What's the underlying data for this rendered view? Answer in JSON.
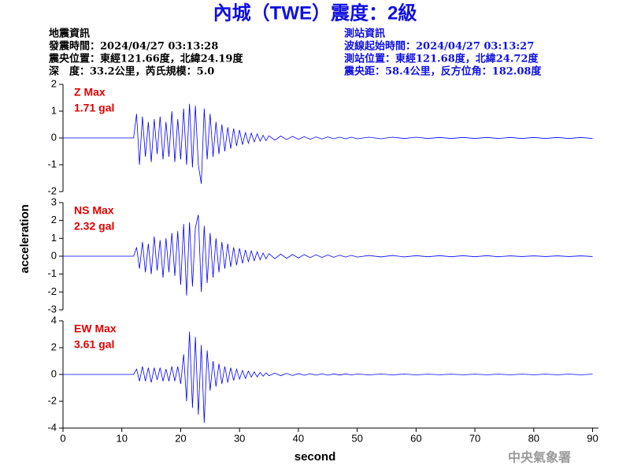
{
  "header": {
    "title": "內城（TWE）震度：2級",
    "left": [
      "地震資訊",
      "發震時間：2024/04/27 03:13:28",
      "震央位置：東經121.66度，北緯24.19度",
      "深　度：33.2公里，芮氏規模：5.0"
    ],
    "right": [
      "測站資訊",
      "波線起始時間：2024/04/27 03:13:27",
      "測站位置：東經121.68度，北緯24.72度",
      "震央距：58.4公里，反方位角：182.08度"
    ]
  },
  "chart_data": [
    {
      "type": "line",
      "annotations": [
        "Z Max",
        "1.71 gal"
      ],
      "color": "#0000ff",
      "xlim": [
        0,
        91
      ],
      "ylim": [
        -2,
        2
      ],
      "yticks": [
        -2,
        -1,
        0,
        1,
        2
      ],
      "x": [
        0,
        12,
        12.5,
        13,
        13.5,
        14,
        14.5,
        15,
        15.5,
        16,
        16.5,
        17,
        17.5,
        18,
        18.5,
        19,
        19.5,
        20,
        20.5,
        21,
        21.5,
        22,
        22.5,
        23,
        23.5,
        24,
        24.5,
        25,
        25.5,
        26,
        26.5,
        27,
        27.5,
        28,
        28.5,
        29,
        29.5,
        30,
        30.5,
        31,
        31.5,
        32,
        32.5,
        33,
        33.5,
        34,
        34.5,
        35,
        36,
        37,
        38,
        39,
        40,
        41,
        42,
        43,
        44,
        45,
        46,
        47,
        48,
        49,
        50,
        52,
        54,
        56,
        58,
        60,
        62,
        64,
        66,
        68,
        70,
        72,
        74,
        76,
        78,
        80,
        82,
        84,
        86,
        88,
        90
      ],
      "values": [
        0,
        0,
        0.9,
        -1.0,
        0.8,
        -0.7,
        0.6,
        -0.9,
        0.7,
        -0.6,
        0.8,
        -0.8,
        0.6,
        -0.7,
        1.0,
        -0.9,
        0.7,
        -0.8,
        1.1,
        -1.0,
        1.27,
        -1.1,
        1.2,
        -1.0,
        -1.71,
        1.1,
        -0.8,
        0.9,
        -0.7,
        0.6,
        -0.6,
        0.5,
        -0.5,
        0.4,
        -0.4,
        0.35,
        -0.3,
        0.3,
        -0.25,
        0.2,
        -0.2,
        0.18,
        -0.15,
        0.15,
        -0.12,
        0.1,
        -0.1,
        0.08,
        -0.08,
        0.07,
        -0.06,
        0.06,
        -0.05,
        0.05,
        -0.05,
        0.04,
        -0.04,
        0.04,
        -0.03,
        0.03,
        -0.03,
        0.03,
        -0.03,
        0.03,
        -0.03,
        0.03,
        -0.02,
        0.03,
        -0.02,
        0.02,
        -0.02,
        0.02,
        -0.02,
        0.02,
        -0.02,
        0.02,
        -0.02,
        0.02,
        -0.02,
        0.02,
        -0.02,
        0.02,
        -0.02
      ]
    },
    {
      "type": "line",
      "annotations": [
        "NS Max",
        "2.32 gal"
      ],
      "ylabel": "acceleration",
      "color": "#0000ff",
      "xlim": [
        0,
        91
      ],
      "ylim": [
        -3,
        3
      ],
      "yticks": [
        -3,
        -2,
        -1,
        0,
        1,
        2,
        3
      ],
      "x": [
        0,
        12,
        12.5,
        13,
        13.5,
        14,
        14.5,
        15,
        15.5,
        16,
        16.5,
        17,
        17.5,
        18,
        18.5,
        19,
        19.5,
        20,
        20.5,
        21,
        21.5,
        22,
        22.5,
        23,
        23.5,
        24,
        24.5,
        25,
        25.5,
        26,
        26.5,
        27,
        27.5,
        28,
        28.5,
        29,
        29.5,
        30,
        30.5,
        31,
        31.5,
        32,
        32.5,
        33,
        33.5,
        34,
        34.5,
        35,
        36,
        37,
        38,
        39,
        40,
        41,
        42,
        43,
        44,
        45,
        46,
        47,
        48,
        49,
        50,
        52,
        54,
        56,
        58,
        60,
        62,
        64,
        66,
        68,
        70,
        72,
        74,
        76,
        78,
        80,
        82,
        84,
        86,
        88,
        90
      ],
      "values": [
        0,
        0,
        0.5,
        -0.7,
        0.8,
        -0.9,
        0.7,
        -1.0,
        1.1,
        -0.8,
        0.9,
        -1.2,
        1.0,
        -0.9,
        1.3,
        -1.1,
        1.4,
        -1.6,
        1.8,
        -2.2,
        1.9,
        -1.7,
        1.6,
        2.32,
        -2.0,
        1.7,
        -1.5,
        1.3,
        -1.2,
        1.0,
        -0.9,
        0.8,
        -0.7,
        0.7,
        -0.6,
        0.5,
        -0.5,
        0.45,
        -0.4,
        0.35,
        -0.3,
        0.3,
        -0.25,
        0.25,
        -0.2,
        0.18,
        -0.15,
        0.15,
        -0.14,
        0.12,
        -0.12,
        0.1,
        -0.1,
        0.09,
        -0.08,
        0.08,
        -0.07,
        0.07,
        -0.06,
        0.06,
        -0.05,
        0.05,
        -0.05,
        0.04,
        -0.04,
        0.04,
        -0.04,
        0.03,
        -0.03,
        0.03,
        -0.03,
        0.03,
        -0.03,
        0.03,
        -0.03,
        0.02,
        -0.02,
        0.02,
        -0.02,
        0.02,
        -0.02,
        0.02,
        -0.02
      ]
    },
    {
      "type": "line",
      "annotations": [
        "EW Max",
        "3.61 gal"
      ],
      "xlabel": "second",
      "color": "#0000ff",
      "xlim": [
        0,
        91
      ],
      "ylim": [
        -4,
        4
      ],
      "yticks": [
        -4,
        -2,
        0,
        2,
        4
      ],
      "xticks": [
        0,
        10,
        20,
        30,
        40,
        50,
        60,
        70,
        80,
        90
      ],
      "x": [
        0,
        12,
        12.5,
        13,
        13.5,
        14,
        14.5,
        15,
        15.5,
        16,
        16.5,
        17,
        17.5,
        18,
        18.5,
        19,
        19.5,
        20,
        20.5,
        21,
        21.5,
        22,
        22.5,
        23,
        23.5,
        24,
        24.5,
        25,
        25.5,
        26,
        26.5,
        27,
        27.5,
        28,
        28.5,
        29,
        29.5,
        30,
        30.5,
        31,
        31.5,
        32,
        32.5,
        33,
        33.5,
        34,
        34.5,
        35,
        36,
        37,
        38,
        39,
        40,
        41,
        42,
        43,
        44,
        45,
        46,
        47,
        48,
        49,
        50,
        52,
        54,
        56,
        58,
        60,
        62,
        64,
        66,
        68,
        70,
        72,
        74,
        76,
        78,
        80,
        82,
        84,
        86,
        88,
        90
      ],
      "values": [
        0,
        0,
        0.4,
        -0.5,
        0.6,
        -0.5,
        0.5,
        -0.6,
        0.5,
        -0.4,
        0.5,
        -0.5,
        0.4,
        -0.5,
        0.6,
        -0.5,
        0.6,
        -0.7,
        1.5,
        -2.0,
        3.2,
        -2.5,
        2.8,
        -3.0,
        2.2,
        -3.61,
        1.8,
        -1.2,
        1.0,
        -0.9,
        0.8,
        -0.7,
        0.6,
        -0.6,
        0.5,
        -0.45,
        0.4,
        -0.35,
        0.3,
        -0.3,
        0.25,
        -0.2,
        0.2,
        -0.18,
        0.15,
        -0.13,
        0.12,
        -0.1,
        0.1,
        -0.09,
        0.08,
        -0.08,
        0.07,
        -0.06,
        0.06,
        -0.05,
        0.05,
        -0.05,
        0.04,
        -0.04,
        0.04,
        -0.03,
        0.03,
        -0.03,
        0.03,
        -0.03,
        0.03,
        -0.03,
        0.02,
        -0.02,
        0.02,
        -0.02,
        0.02,
        -0.02,
        0.02,
        -0.02,
        0.02,
        -0.02,
        0.02,
        -0.02,
        0.02,
        -0.02,
        0.02
      ]
    }
  ],
  "footer": {
    "watermark": "中央氣象署"
  }
}
